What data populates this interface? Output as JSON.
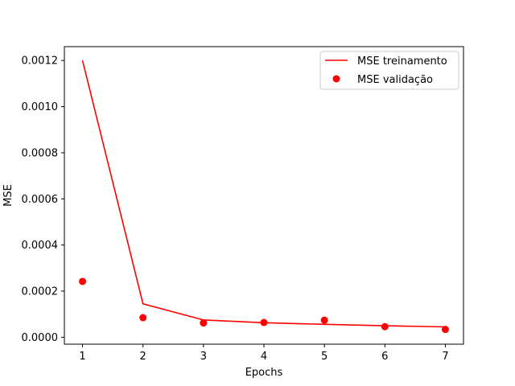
{
  "chart_data": {
    "type": "line",
    "title": "",
    "xlabel": "Epochs",
    "ylabel": "MSE",
    "x": [
      1,
      2,
      3,
      4,
      5,
      6,
      7
    ],
    "xlim": [
      0.7,
      7.3
    ],
    "ylim": [
      -3e-05,
      0.00126
    ],
    "xticks": [
      1,
      2,
      3,
      4,
      5,
      6,
      7
    ],
    "xtick_labels": [
      "1",
      "2",
      "3",
      "4",
      "5",
      "6",
      "7"
    ],
    "yticks": [
      0,
      0.0002,
      0.0004,
      0.0006,
      0.0008,
      0.001,
      0.0012
    ],
    "ytick_labels": [
      "0.0000",
      "0.0002",
      "0.0004",
      "0.0006",
      "0.0008",
      "0.0010",
      "0.0012"
    ],
    "grid": false,
    "legend_position": "top-right",
    "series": [
      {
        "name": "MSE treinamento",
        "style": "line",
        "color": "#ff0000",
        "values": [
          0.0012,
          0.000145,
          7.5e-05,
          6.3e-05,
          5.6e-05,
          5e-05,
          4.5e-05
        ]
      },
      {
        "name": "MSE validação",
        "style": "scatter",
        "color": "#ff0000",
        "values": [
          0.000242,
          8.5e-05,
          6.2e-05,
          6.4e-05,
          7.4e-05,
          4.6e-05,
          3.4e-05
        ]
      }
    ]
  }
}
